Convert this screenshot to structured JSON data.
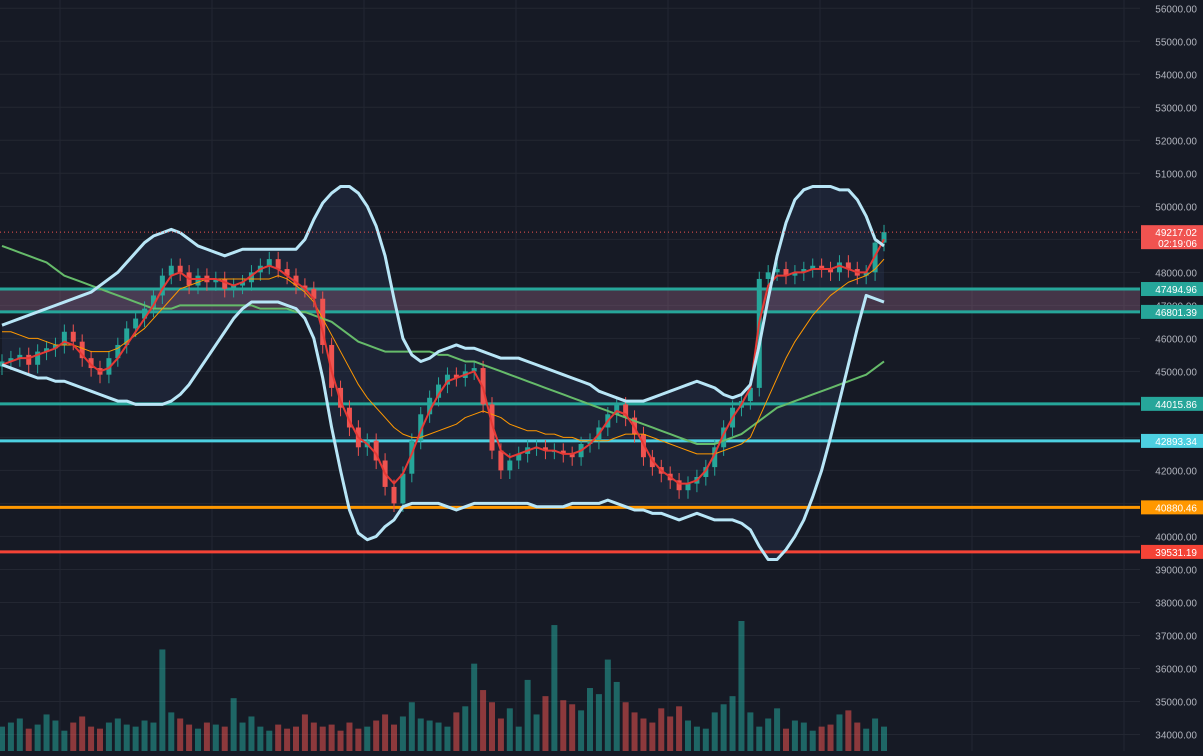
{
  "chart_data": {
    "type": "candlestick",
    "y_axis": {
      "side": "right",
      "ylim": [
        33500,
        56250
      ],
      "step": 1000
    },
    "y_ticks": [
      "56000.00",
      "55000.00",
      "54000.00",
      "53000.00",
      "52000.00",
      "51000.00",
      "50000.00",
      "49000.00",
      "48000.00",
      "47000.00",
      "46000.00",
      "45000.00",
      "44000.00",
      "43000.00",
      "42000.00",
      "41000.00",
      "40000.00",
      "39000.00",
      "38000.00",
      "37000.00",
      "36000.00",
      "35000.00",
      "34000.00"
    ],
    "current_price": {
      "value": 49217.02,
      "label": "49217.02",
      "countdown": "02:19:06",
      "color": "#f05350"
    },
    "levels": [
      {
        "label": "47494.96",
        "value": 47494.96,
        "color": "#26a69a"
      },
      {
        "label": "46801.39",
        "value": 46801.39,
        "color": "#26a69a"
      },
      {
        "label": "44015.86",
        "value": 44015.86,
        "color": "#26a69a"
      },
      {
        "label": "42893.34",
        "value": 42893.34,
        "color": "#4dd0e1"
      },
      {
        "label": "40880.46",
        "value": 40880.46,
        "color": "#ff9800"
      },
      {
        "label": "39531.19",
        "value": 39531.19,
        "color": "#f44336"
      }
    ],
    "zone": {
      "from": 46801.39,
      "to": 47494.96,
      "color": "#9c6b8a"
    },
    "colors": {
      "up": "#26a69a",
      "down": "#ef5350",
      "bollinger": "#b8e6f7",
      "ma_fast": "#e53935",
      "ma_mid": "#ff9800",
      "ma_slow": "#66bb6a",
      "background": "#161a25",
      "grid": "#232732"
    },
    "candles_close": [
      45300,
      45400,
      45500,
      45200,
      45600,
      45700,
      45800,
      46200,
      45900,
      45400,
      45100,
      44900,
      45400,
      45800,
      46300,
      46600,
      46900,
      47300,
      47900,
      48200,
      48000,
      47600,
      47900,
      47700,
      47800,
      47500,
      47600,
      47700,
      48000,
      48200,
      48400,
      48100,
      47900,
      47600,
      47500,
      47200,
      45800,
      44500,
      43900,
      43300,
      42700,
      42900,
      42300,
      41500,
      41000,
      41900,
      42900,
      43700,
      44200,
      44600,
      44900,
      44800,
      45000,
      45100,
      44000,
      42600,
      42000,
      42300,
      42500,
      42700,
      42700,
      42600,
      42600,
      42500,
      42400,
      42800,
      42900,
      43300,
      43700,
      44000,
      43600,
      43100,
      42400,
      42100,
      41900,
      41700,
      41400,
      41600,
      41800,
      42100,
      42700,
      43300,
      43900,
      44100,
      44500,
      47800,
      48000,
      48100,
      47900,
      48000,
      48100,
      48200,
      48100,
      48000,
      48300,
      48100,
      47900,
      48000,
      48900,
      49217.02
    ],
    "ma_fast": [
      45200,
      45300,
      45400,
      45400,
      45500,
      45600,
      45700,
      45900,
      45800,
      45500,
      45200,
      45000,
      45100,
      45400,
      45800,
      46200,
      46600,
      47000,
      47500,
      47900,
      48000,
      47800,
      47800,
      47800,
      47800,
      47700,
      47600,
      47700,
      47900,
      48100,
      48200,
      48100,
      47900,
      47700,
      47500,
      47200,
      46200,
      45000,
      44100,
      43500,
      43000,
      42800,
      42500,
      41900,
      41600,
      41900,
      42500,
      43200,
      43800,
      44300,
      44700,
      44800,
      44900,
      45000,
      44500,
      43400,
      42600,
      42400,
      42500,
      42600,
      42700,
      42600,
      42600,
      42500,
      42500,
      42600,
      42800,
      43100,
      43500,
      43800,
      43700,
      43300,
      42800,
      42300,
      42000,
      41800,
      41600,
      41600,
      41700,
      42000,
      42500,
      43100,
      43600,
      44000,
      44500,
      46500,
      47600,
      47900,
      47900,
      48000,
      48000,
      48100,
      48100,
      48100,
      48200,
      48100,
      48000,
      48000,
      48500,
      49000
    ],
    "ma_mid": [
      46200,
      46200,
      46100,
      46000,
      46000,
      45900,
      45800,
      45800,
      45800,
      45700,
      45600,
      45600,
      45600,
      45700,
      45900,
      46100,
      46300,
      46600,
      46900,
      47200,
      47500,
      47600,
      47700,
      47800,
      47800,
      47800,
      47800,
      47800,
      47800,
      47800,
      47800,
      47900,
      47800,
      47600,
      47400,
      47100,
      46600,
      46100,
      45600,
      45100,
      44600,
      44200,
      43900,
      43600,
      43300,
      43100,
      43000,
      43000,
      43100,
      43200,
      43300,
      43400,
      43600,
      43700,
      43800,
      43700,
      43600,
      43400,
      43300,
      43200,
      43200,
      43100,
      43100,
      43000,
      43000,
      42900,
      42900,
      42900,
      42900,
      43000,
      43100,
      43100,
      43100,
      43000,
      42900,
      42800,
      42700,
      42600,
      42500,
      42500,
      42500,
      42600,
      42700,
      42800,
      43000,
      43600,
      44200,
      44800,
      45400,
      45900,
      46300,
      46700,
      47000,
      47300,
      47500,
      47700,
      47800,
      47900,
      48100,
      48400
    ],
    "ma_slow": [
      48800,
      48700,
      48600,
      48500,
      48400,
      48300,
      48100,
      47900,
      47800,
      47700,
      47600,
      47500,
      47400,
      47300,
      47200,
      47100,
      47000,
      46900,
      46900,
      46900,
      47000,
      47000,
      47000,
      47000,
      47000,
      47000,
      47000,
      47000,
      47000,
      46900,
      46900,
      46900,
      46900,
      46800,
      46800,
      46700,
      46600,
      46500,
      46300,
      46100,
      45900,
      45800,
      45700,
      45600,
      45600,
      45600,
      45600,
      45600,
      45600,
      45500,
      45500,
      45400,
      45300,
      45300,
      45200,
      45100,
      45000,
      44900,
      44800,
      44700,
      44600,
      44500,
      44400,
      44300,
      44200,
      44100,
      44000,
      43900,
      43800,
      43700,
      43600,
      43500,
      43400,
      43300,
      43200,
      43100,
      43000,
      42900,
      42800,
      42800,
      42800,
      42900,
      43000,
      43100,
      43300,
      43500,
      43700,
      43900,
      44000,
      44100,
      44200,
      44300,
      44400,
      44500,
      44600,
      44700,
      44800,
      44900,
      45100,
      45300
    ],
    "bb_upper": [
      46400,
      46500,
      46600,
      46700,
      46800,
      46900,
      47000,
      47100,
      47200,
      47300,
      47400,
      47600,
      47800,
      48000,
      48300,
      48600,
      48900,
      49100,
      49200,
      49300,
      49200,
      49000,
      48800,
      48700,
      48600,
      48500,
      48600,
      48700,
      48700,
      48700,
      48700,
      48700,
      48700,
      48700,
      49000,
      49600,
      50100,
      50400,
      50600,
      50600,
      50400,
      50000,
      49400,
      48500,
      47200,
      46000,
      45500,
      45300,
      45400,
      45600,
      45700,
      45800,
      45700,
      45700,
      45600,
      45500,
      45400,
      45400,
      45400,
      45300,
      45200,
      45100,
      45000,
      44900,
      44800,
      44700,
      44600,
      44400,
      44300,
      44200,
      44100,
      44100,
      44100,
      44200,
      44300,
      44400,
      44500,
      44600,
      44700,
      44600,
      44500,
      44300,
      44200,
      44300,
      44600,
      45800,
      47200,
      48500,
      49500,
      50200,
      50500,
      50600,
      50600,
      50600,
      50500,
      50500,
      50200,
      49700,
      49000,
      48800
    ],
    "bb_lower": [
      45200,
      45100,
      45000,
      44900,
      44800,
      44800,
      44700,
      44700,
      44600,
      44500,
      44400,
      44300,
      44200,
      44100,
      44100,
      44000,
      44000,
      44000,
      44000,
      44100,
      44300,
      44600,
      45000,
      45400,
      45800,
      46200,
      46600,
      46900,
      47100,
      47100,
      47100,
      47100,
      47000,
      46900,
      46600,
      46000,
      44800,
      43300,
      42000,
      40800,
      40100,
      39900,
      40000,
      40300,
      40500,
      40900,
      41000,
      41000,
      41000,
      41000,
      40900,
      40800,
      40900,
      41000,
      41000,
      41000,
      41000,
      41000,
      41000,
      41000,
      40900,
      40900,
      40900,
      40900,
      41000,
      41000,
      41000,
      41000,
      41100,
      41000,
      40900,
      40800,
      40800,
      40700,
      40700,
      40600,
      40500,
      40600,
      40700,
      40600,
      40500,
      40500,
      40500,
      40400,
      40200,
      39700,
      39300,
      39300,
      39600,
      40000,
      40500,
      41200,
      42000,
      43000,
      44100,
      45200,
      46300,
      47300,
      47200,
      47100
    ],
    "volume": [
      12,
      14,
      16,
      11,
      13,
      18,
      15,
      10,
      14,
      17,
      12,
      11,
      14,
      16,
      13,
      12,
      15,
      14,
      50,
      19,
      16,
      13,
      11,
      14,
      13,
      12,
      26,
      14,
      17,
      12,
      10,
      13,
      11,
      12,
      18,
      14,
      12,
      13,
      10,
      14,
      11,
      12,
      15,
      18,
      13,
      17,
      24,
      16,
      15,
      14,
      12,
      19,
      22,
      43,
      30,
      24,
      16,
      21,
      12,
      35,
      18,
      27,
      62,
      25,
      23,
      20,
      31,
      28,
      45,
      34,
      24,
      19,
      16,
      14,
      21,
      17,
      22,
      15,
      12,
      11,
      19,
      23,
      27,
      64,
      19,
      12,
      16,
      21,
      11,
      15,
      14,
      10,
      12,
      13,
      18,
      20,
      14,
      11,
      16,
      12
    ]
  }
}
